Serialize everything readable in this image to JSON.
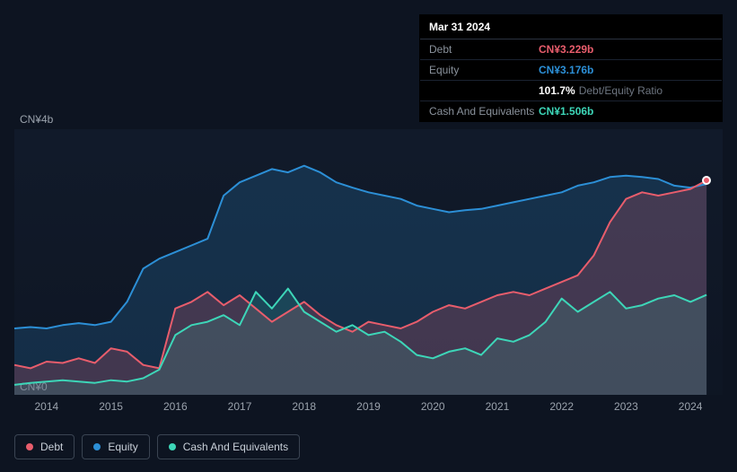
{
  "tooltip": {
    "date": "Mar 31 2024",
    "rows": [
      {
        "label": "Debt",
        "value": "CN¥3.229b",
        "cls": "debt"
      },
      {
        "label": "Equity",
        "value": "CN¥3.176b",
        "cls": "equity"
      }
    ],
    "ratio_pct": "101.7%",
    "ratio_label": "Debt/Equity Ratio",
    "cash_row": {
      "label": "Cash And Equivalents",
      "value": "CN¥1.506b",
      "cls": "cash"
    }
  },
  "chart": {
    "type": "area-line",
    "background_color": "#0d1421",
    "plot_bg_from": "rgba(30,45,70,0.25)",
    "plot_bg_to": "rgba(20,30,48,0.15)",
    "y_axis": {
      "top_label": "CN¥4b",
      "bottom_label": "CN¥0",
      "ylim": [
        0,
        4
      ],
      "label_fontsize": 12,
      "label_color": "#9aa2ac"
    },
    "x_axis": {
      "years": [
        2014,
        2015,
        2016,
        2017,
        2018,
        2019,
        2020,
        2021,
        2022,
        2023,
        2024
      ],
      "xlim": [
        2013.5,
        2024.5
      ],
      "label_fontsize": 12,
      "label_color": "#9aa2ac"
    },
    "series": {
      "debt": {
        "label": "Debt",
        "color": "#e85d6c",
        "fill_opacity": 0.22,
        "line_width": 2,
        "data": [
          [
            2013.5,
            0.45
          ],
          [
            2013.75,
            0.4
          ],
          [
            2014.0,
            0.5
          ],
          [
            2014.25,
            0.48
          ],
          [
            2014.5,
            0.55
          ],
          [
            2014.75,
            0.48
          ],
          [
            2015.0,
            0.7
          ],
          [
            2015.25,
            0.65
          ],
          [
            2015.5,
            0.45
          ],
          [
            2015.75,
            0.4
          ],
          [
            2016.0,
            1.3
          ],
          [
            2016.25,
            1.4
          ],
          [
            2016.5,
            1.55
          ],
          [
            2016.75,
            1.35
          ],
          [
            2017.0,
            1.5
          ],
          [
            2017.25,
            1.3
          ],
          [
            2017.5,
            1.1
          ],
          [
            2017.75,
            1.25
          ],
          [
            2018.0,
            1.4
          ],
          [
            2018.25,
            1.2
          ],
          [
            2018.5,
            1.05
          ],
          [
            2018.75,
            0.95
          ],
          [
            2019.0,
            1.1
          ],
          [
            2019.25,
            1.05
          ],
          [
            2019.5,
            1.0
          ],
          [
            2019.75,
            1.1
          ],
          [
            2020.0,
            1.25
          ],
          [
            2020.25,
            1.35
          ],
          [
            2020.5,
            1.3
          ],
          [
            2020.75,
            1.4
          ],
          [
            2021.0,
            1.5
          ],
          [
            2021.25,
            1.55
          ],
          [
            2021.5,
            1.5
          ],
          [
            2021.75,
            1.6
          ],
          [
            2022.0,
            1.7
          ],
          [
            2022.25,
            1.8
          ],
          [
            2022.5,
            2.1
          ],
          [
            2022.75,
            2.6
          ],
          [
            2023.0,
            2.95
          ],
          [
            2023.25,
            3.05
          ],
          [
            2023.5,
            3.0
          ],
          [
            2023.75,
            3.05
          ],
          [
            2024.0,
            3.1
          ],
          [
            2024.25,
            3.229
          ]
        ]
      },
      "equity": {
        "label": "Equity",
        "color": "#2c8fd6",
        "fill_opacity": 0.2,
        "line_width": 2,
        "data": [
          [
            2013.5,
            1.0
          ],
          [
            2013.75,
            1.02
          ],
          [
            2014.0,
            1.0
          ],
          [
            2014.25,
            1.05
          ],
          [
            2014.5,
            1.08
          ],
          [
            2014.75,
            1.05
          ],
          [
            2015.0,
            1.1
          ],
          [
            2015.25,
            1.4
          ],
          [
            2015.5,
            1.9
          ],
          [
            2015.75,
            2.05
          ],
          [
            2016.0,
            2.15
          ],
          [
            2016.25,
            2.25
          ],
          [
            2016.5,
            2.35
          ],
          [
            2016.75,
            3.0
          ],
          [
            2017.0,
            3.2
          ],
          [
            2017.25,
            3.3
          ],
          [
            2017.5,
            3.4
          ],
          [
            2017.75,
            3.35
          ],
          [
            2018.0,
            3.45
          ],
          [
            2018.25,
            3.35
          ],
          [
            2018.5,
            3.2
          ],
          [
            2018.75,
            3.12
          ],
          [
            2019.0,
            3.05
          ],
          [
            2019.25,
            3.0
          ],
          [
            2019.5,
            2.95
          ],
          [
            2019.75,
            2.85
          ],
          [
            2020.0,
            2.8
          ],
          [
            2020.25,
            2.75
          ],
          [
            2020.5,
            2.78
          ],
          [
            2020.75,
            2.8
          ],
          [
            2021.0,
            2.85
          ],
          [
            2021.25,
            2.9
          ],
          [
            2021.5,
            2.95
          ],
          [
            2021.75,
            3.0
          ],
          [
            2022.0,
            3.05
          ],
          [
            2022.25,
            3.15
          ],
          [
            2022.5,
            3.2
          ],
          [
            2022.75,
            3.28
          ],
          [
            2023.0,
            3.3
          ],
          [
            2023.25,
            3.28
          ],
          [
            2023.5,
            3.25
          ],
          [
            2023.75,
            3.15
          ],
          [
            2024.0,
            3.12
          ],
          [
            2024.25,
            3.176
          ]
        ]
      },
      "cash": {
        "label": "Cash And Equivalents",
        "color": "#3dd6b8",
        "fill_opacity": 0.14,
        "line_width": 2,
        "data": [
          [
            2013.5,
            0.15
          ],
          [
            2013.75,
            0.18
          ],
          [
            2014.0,
            0.2
          ],
          [
            2014.25,
            0.22
          ],
          [
            2014.5,
            0.2
          ],
          [
            2014.75,
            0.18
          ],
          [
            2015.0,
            0.22
          ],
          [
            2015.25,
            0.2
          ],
          [
            2015.5,
            0.25
          ],
          [
            2015.75,
            0.38
          ],
          [
            2016.0,
            0.9
          ],
          [
            2016.25,
            1.05
          ],
          [
            2016.5,
            1.1
          ],
          [
            2016.75,
            1.2
          ],
          [
            2017.0,
            1.05
          ],
          [
            2017.25,
            1.55
          ],
          [
            2017.5,
            1.3
          ],
          [
            2017.75,
            1.6
          ],
          [
            2018.0,
            1.25
          ],
          [
            2018.25,
            1.1
          ],
          [
            2018.5,
            0.95
          ],
          [
            2018.75,
            1.05
          ],
          [
            2019.0,
            0.9
          ],
          [
            2019.25,
            0.95
          ],
          [
            2019.5,
            0.8
          ],
          [
            2019.75,
            0.6
          ],
          [
            2020.0,
            0.55
          ],
          [
            2020.25,
            0.65
          ],
          [
            2020.5,
            0.7
          ],
          [
            2020.75,
            0.6
          ],
          [
            2021.0,
            0.85
          ],
          [
            2021.25,
            0.8
          ],
          [
            2021.5,
            0.9
          ],
          [
            2021.75,
            1.1
          ],
          [
            2022.0,
            1.45
          ],
          [
            2022.25,
            1.25
          ],
          [
            2022.5,
            1.4
          ],
          [
            2022.75,
            1.55
          ],
          [
            2023.0,
            1.3
          ],
          [
            2023.25,
            1.35
          ],
          [
            2023.5,
            1.45
          ],
          [
            2023.75,
            1.5
          ],
          [
            2024.0,
            1.4
          ],
          [
            2024.25,
            1.506
          ]
        ]
      }
    },
    "marker": {
      "year": 2024.25,
      "series": "debt",
      "fill": "#e85d6c",
      "border": "#fff"
    },
    "legend": {
      "items": [
        {
          "key": "debt",
          "label": "Debt",
          "color": "#e85d6c"
        },
        {
          "key": "equity",
          "label": "Equity",
          "color": "#2c8fd6"
        },
        {
          "key": "cash",
          "label": "Cash And Equivalents",
          "color": "#3dd6b8"
        }
      ],
      "border_color": "#3a4452",
      "text_color": "#c8cfd8"
    }
  }
}
